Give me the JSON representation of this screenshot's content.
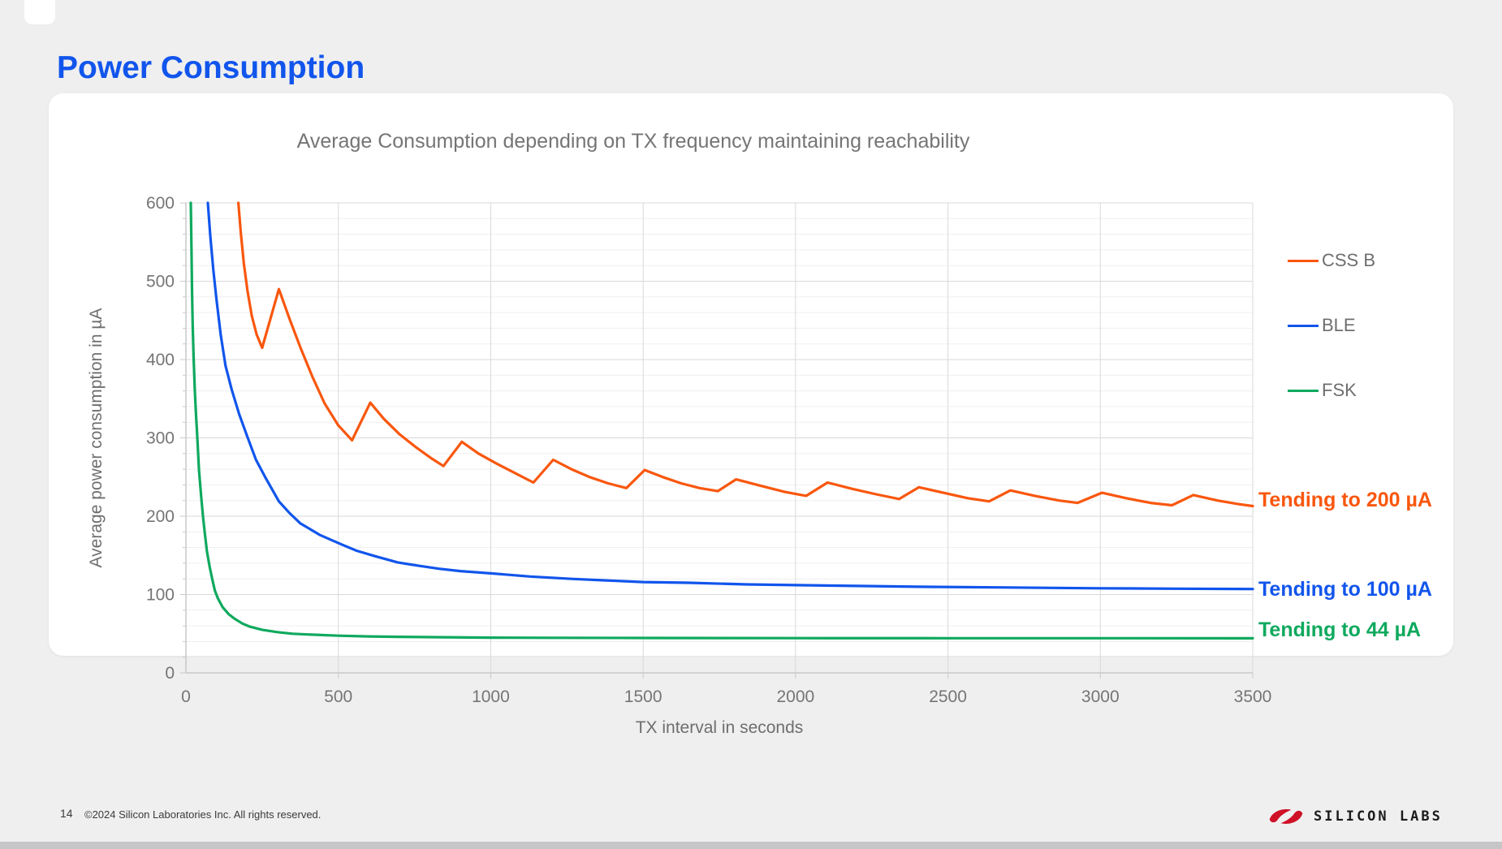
{
  "header": {
    "title": "Power Consumption"
  },
  "colors": {
    "accent_blue": "#1155EC",
    "orange": "#F9570E",
    "green": "#0FA95E",
    "logo_red": "#CE1126"
  },
  "chart": {
    "title": "Average Consumption depending on TX frequency maintaining reachability",
    "legend": [
      {
        "label": "CSS B"
      },
      {
        "label": "BLE"
      },
      {
        "label": "FSK"
      }
    ]
  },
  "chart_data": {
    "type": "line",
    "title": "Average Consumption depending on TX frequency maintaining reachability",
    "xlabel": "TX interval in seconds",
    "ylabel": "Average power consumption in µA",
    "xlim": [
      0,
      3500
    ],
    "ylim": [
      0,
      600
    ],
    "x_ticks": [
      0,
      500,
      1000,
      1500,
      2000,
      2500,
      3000,
      3500
    ],
    "y_ticks": [
      0,
      100,
      200,
      300,
      400,
      500,
      600
    ],
    "grid": {
      "x_major_step": 500,
      "y_major_step": 100,
      "y_minor_step": 20,
      "legend_position": "right"
    },
    "annotations": [
      {
        "text": "Tending to 200 µA",
        "series": "CSS B"
      },
      {
        "text": "Tending to 100 µA",
        "series": "BLE"
      },
      {
        "text": "Tending to 44 µA",
        "series": "FSK"
      }
    ],
    "series": [
      {
        "name": "CSS B",
        "color": "#F9570E",
        "asymptote_uA": 200,
        "points": [
          [
            172,
            600
          ],
          [
            180,
            562
          ],
          [
            190,
            523
          ],
          [
            202,
            488
          ],
          [
            216,
            456
          ],
          [
            232,
            432
          ],
          [
            250,
            415
          ],
          [
            305,
            490
          ],
          [
            340,
            452
          ],
          [
            375,
            416
          ],
          [
            415,
            378
          ],
          [
            455,
            344
          ],
          [
            500,
            316
          ],
          [
            545,
            297
          ],
          [
            605,
            345
          ],
          [
            650,
            324
          ],
          [
            700,
            305
          ],
          [
            755,
            288
          ],
          [
            805,
            274
          ],
          [
            845,
            264
          ],
          [
            905,
            295
          ],
          [
            960,
            280
          ],
          [
            1020,
            267
          ],
          [
            1080,
            255
          ],
          [
            1140,
            243
          ],
          [
            1205,
            272
          ],
          [
            1265,
            260
          ],
          [
            1325,
            250
          ],
          [
            1385,
            242
          ],
          [
            1445,
            236
          ],
          [
            1505,
            259
          ],
          [
            1565,
            250
          ],
          [
            1625,
            242
          ],
          [
            1685,
            236
          ],
          [
            1745,
            232
          ],
          [
            1805,
            247
          ],
          [
            1885,
            239
          ],
          [
            1965,
            231
          ],
          [
            2035,
            226
          ],
          [
            2105,
            243
          ],
          [
            2185,
            235
          ],
          [
            2265,
            228
          ],
          [
            2340,
            222
          ],
          [
            2405,
            237
          ],
          [
            2485,
            230
          ],
          [
            2565,
            223
          ],
          [
            2635,
            219
          ],
          [
            2705,
            233
          ],
          [
            2785,
            226
          ],
          [
            2865,
            220
          ],
          [
            2925,
            217
          ],
          [
            3005,
            230
          ],
          [
            3085,
            223
          ],
          [
            3165,
            217
          ],
          [
            3235,
            214
          ],
          [
            3305,
            227
          ],
          [
            3385,
            220
          ],
          [
            3445,
            216
          ],
          [
            3500,
            213
          ]
        ]
      },
      {
        "name": "BLE",
        "color": "#1155EC",
        "asymptote_uA": 100,
        "points": [
          [
            72,
            600
          ],
          [
            80,
            558
          ],
          [
            90,
            514
          ],
          [
            100,
            478
          ],
          [
            114,
            432
          ],
          [
            130,
            392
          ],
          [
            150,
            362
          ],
          [
            175,
            330
          ],
          [
            200,
            303
          ],
          [
            230,
            272
          ],
          [
            260,
            250
          ],
          [
            305,
            219
          ],
          [
            340,
            204
          ],
          [
            375,
            191
          ],
          [
            440,
            176
          ],
          [
            510,
            164
          ],
          [
            560,
            156
          ],
          [
            620,
            149
          ],
          [
            695,
            141
          ],
          [
            760,
            137
          ],
          [
            830,
            133
          ],
          [
            900,
            130
          ],
          [
            1000,
            127
          ],
          [
            1130,
            123
          ],
          [
            1265,
            120
          ],
          [
            1380,
            118
          ],
          [
            1500,
            116
          ],
          [
            1650,
            115
          ],
          [
            1840,
            113
          ],
          [
            2000,
            112
          ],
          [
            2200,
            111
          ],
          [
            2400,
            110
          ],
          [
            2700,
            109
          ],
          [
            3000,
            108
          ],
          [
            3250,
            107.5
          ],
          [
            3500,
            107
          ]
        ]
      },
      {
        "name": "FSK",
        "color": "#0FA95E",
        "asymptote_uA": 44,
        "points": [
          [
            16,
            600
          ],
          [
            18,
            545
          ],
          [
            20,
            490
          ],
          [
            22,
            445
          ],
          [
            25,
            405
          ],
          [
            29,
            362
          ],
          [
            33,
            330
          ],
          [
            37,
            303
          ],
          [
            43,
            259
          ],
          [
            50,
            225
          ],
          [
            56,
            200
          ],
          [
            62,
            178
          ],
          [
            69,
            155
          ],
          [
            78,
            135
          ],
          [
            88,
            117
          ],
          [
            95,
            105
          ],
          [
            105,
            95
          ],
          [
            120,
            84
          ],
          [
            140,
            75
          ],
          [
            160,
            69
          ],
          [
            185,
            63
          ],
          [
            210,
            59
          ],
          [
            250,
            55
          ],
          [
            300,
            52
          ],
          [
            350,
            50
          ],
          [
            400,
            49
          ],
          [
            500,
            47.5
          ],
          [
            600,
            46.5
          ],
          [
            700,
            46
          ],
          [
            850,
            45.5
          ],
          [
            1000,
            45
          ],
          [
            1200,
            44.8
          ],
          [
            1500,
            44.6
          ],
          [
            2000,
            44.4
          ],
          [
            2500,
            44.3
          ],
          [
            3000,
            44.2
          ],
          [
            3500,
            44.1
          ]
        ]
      }
    ]
  },
  "footer": {
    "page_number": "14",
    "copyright": "©2024 Silicon Laboratories Inc. All rights reserved.",
    "logo_text": "SILICON LABS"
  }
}
